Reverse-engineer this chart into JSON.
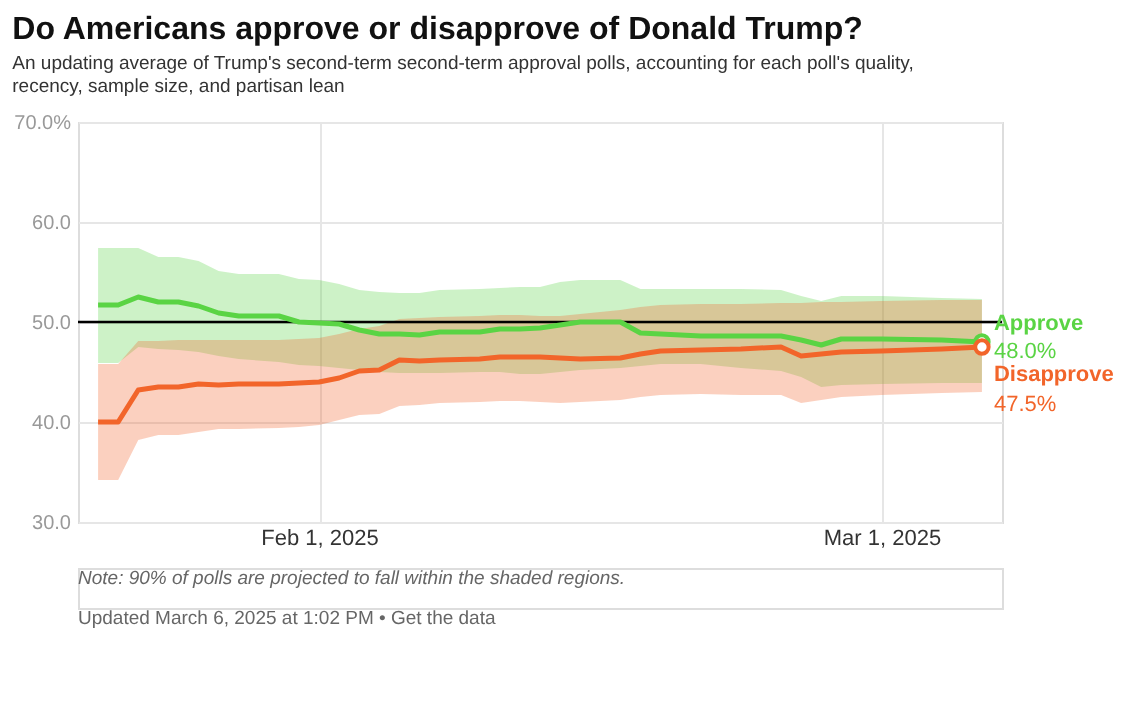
{
  "chart_data": {
    "type": "line",
    "title": "Do Americans approve or disapprove of Donald Trump?",
    "subtitle": "An updating average of Trump's second-term second-term approval polls, accounting for each poll's quality, recency, sample size, and partisan lean",
    "x": [
      "2025-01-21",
      "2025-01-22",
      "2025-01-23",
      "2025-01-24",
      "2025-01-25",
      "2025-01-26",
      "2025-01-27",
      "2025-01-28",
      "2025-01-30",
      "2025-01-31",
      "2025-02-01",
      "2025-02-02",
      "2025-02-03",
      "2025-02-04",
      "2025-02-05",
      "2025-02-06",
      "2025-02-07",
      "2025-02-09",
      "2025-02-10",
      "2025-02-11",
      "2025-02-12",
      "2025-02-13",
      "2025-02-14",
      "2025-02-16",
      "2025-02-17",
      "2025-02-18",
      "2025-02-20",
      "2025-02-22",
      "2025-02-24",
      "2025-02-25",
      "2025-02-26",
      "2025-02-27",
      "2025-03-01",
      "2025-03-04",
      "2025-03-06"
    ],
    "series": [
      {
        "name": "Approve",
        "color": "#5ad444",
        "values": [
          51.7,
          51.7,
          52.5,
          52.0,
          52.0,
          51.6,
          50.9,
          50.6,
          50.6,
          50.0,
          49.9,
          49.8,
          49.2,
          48.8,
          48.8,
          48.7,
          49.0,
          49.0,
          49.3,
          49.3,
          49.4,
          49.7,
          50.0,
          50.0,
          48.9,
          48.8,
          48.6,
          48.6,
          48.6,
          48.2,
          47.7,
          48.3,
          48.3,
          48.2,
          48.0
        ],
        "lower": [
          45.9,
          45.9,
          47.5,
          47.3,
          47.2,
          47.0,
          46.6,
          46.3,
          46.0,
          45.7,
          45.6,
          45.4,
          45.2,
          45.0,
          44.9,
          44.9,
          44.9,
          45.0,
          45.0,
          44.8,
          44.8,
          45.0,
          45.2,
          45.4,
          45.6,
          45.8,
          45.8,
          45.4,
          45.1,
          44.5,
          43.5,
          43.7,
          43.8,
          43.9,
          43.9
        ],
        "upper": [
          57.4,
          57.4,
          57.4,
          56.5,
          56.5,
          56.1,
          55.1,
          54.8,
          54.8,
          54.3,
          54.2,
          53.8,
          53.2,
          53.0,
          52.9,
          52.9,
          53.2,
          53.3,
          53.4,
          53.5,
          53.5,
          54.0,
          54.2,
          54.2,
          53.3,
          53.3,
          53.3,
          53.3,
          53.2,
          52.6,
          52.1,
          52.6,
          52.6,
          52.4,
          52.3
        ],
        "value_labels": [
          null,
          null,
          null,
          null,
          null,
          null,
          null,
          null,
          null,
          null,
          null,
          null,
          null,
          null,
          null,
          null,
          null,
          null,
          null,
          null,
          null,
          null,
          null,
          null,
          null,
          null,
          null,
          null,
          null,
          null,
          null,
          null,
          null,
          null,
          "48.0%"
        ]
      },
      {
        "name": "Disapprove",
        "color": "#f2652a",
        "values": [
          40.0,
          40.0,
          43.2,
          43.5,
          43.5,
          43.8,
          43.7,
          43.8,
          43.8,
          43.9,
          44.0,
          44.4,
          45.1,
          45.2,
          46.2,
          46.1,
          46.2,
          46.3,
          46.5,
          46.5,
          46.5,
          46.4,
          46.3,
          46.4,
          46.8,
          47.1,
          47.2,
          47.3,
          47.5,
          46.6,
          46.8,
          47.0,
          47.1,
          47.3,
          47.5
        ],
        "lower": [
          34.2,
          34.2,
          38.2,
          38.7,
          38.7,
          39.0,
          39.3,
          39.3,
          39.4,
          39.5,
          39.7,
          40.2,
          40.7,
          40.8,
          41.6,
          41.7,
          41.9,
          42.0,
          42.1,
          42.1,
          42.0,
          41.9,
          42.0,
          42.2,
          42.5,
          42.7,
          42.8,
          42.7,
          42.7,
          41.9,
          42.2,
          42.5,
          42.7,
          42.9,
          43.0
        ],
        "upper": [
          45.8,
          45.8,
          48.1,
          48.1,
          48.2,
          48.2,
          48.2,
          48.2,
          48.2,
          48.3,
          48.4,
          48.8,
          49.3,
          49.6,
          50.3,
          50.4,
          50.5,
          50.6,
          50.7,
          50.7,
          50.6,
          50.6,
          50.8,
          51.2,
          51.5,
          51.7,
          51.8,
          51.8,
          51.9,
          51.9,
          52.0,
          52.0,
          52.1,
          52.2,
          52.2
        ],
        "value_labels": [
          null,
          null,
          null,
          null,
          null,
          null,
          null,
          null,
          null,
          null,
          null,
          null,
          null,
          null,
          null,
          null,
          null,
          null,
          null,
          null,
          null,
          null,
          null,
          null,
          null,
          null,
          null,
          null,
          null,
          null,
          null,
          null,
          null,
          null,
          "47.5%"
        ]
      }
    ],
    "xlim": [
      "2025-01-20",
      "2025-03-07"
    ],
    "xticks": [
      {
        "value": "2025-02-01",
        "label": "Feb 1, 2025"
      },
      {
        "value": "2025-03-01",
        "label": "Mar 1, 2025"
      }
    ],
    "ylim": [
      30,
      70
    ],
    "yticks": [
      {
        "value": 30,
        "label": "30.0"
      },
      {
        "value": 40,
        "label": "40.0"
      },
      {
        "value": 50,
        "label": "50.0"
      },
      {
        "value": 60,
        "label": "60.0"
      },
      {
        "value": 70,
        "label": "70.0%"
      }
    ],
    "ref_lines": [
      {
        "axis": "y",
        "value": 50,
        "color": "#000000"
      }
    ],
    "grid": true,
    "marker": "none",
    "line_style": "solid",
    "annotations": [
      "Note: 90% of polls are projected to fall within the shaded regions.",
      "Updated March 6, 2025 at 1:02 PM • Get the data"
    ]
  }
}
